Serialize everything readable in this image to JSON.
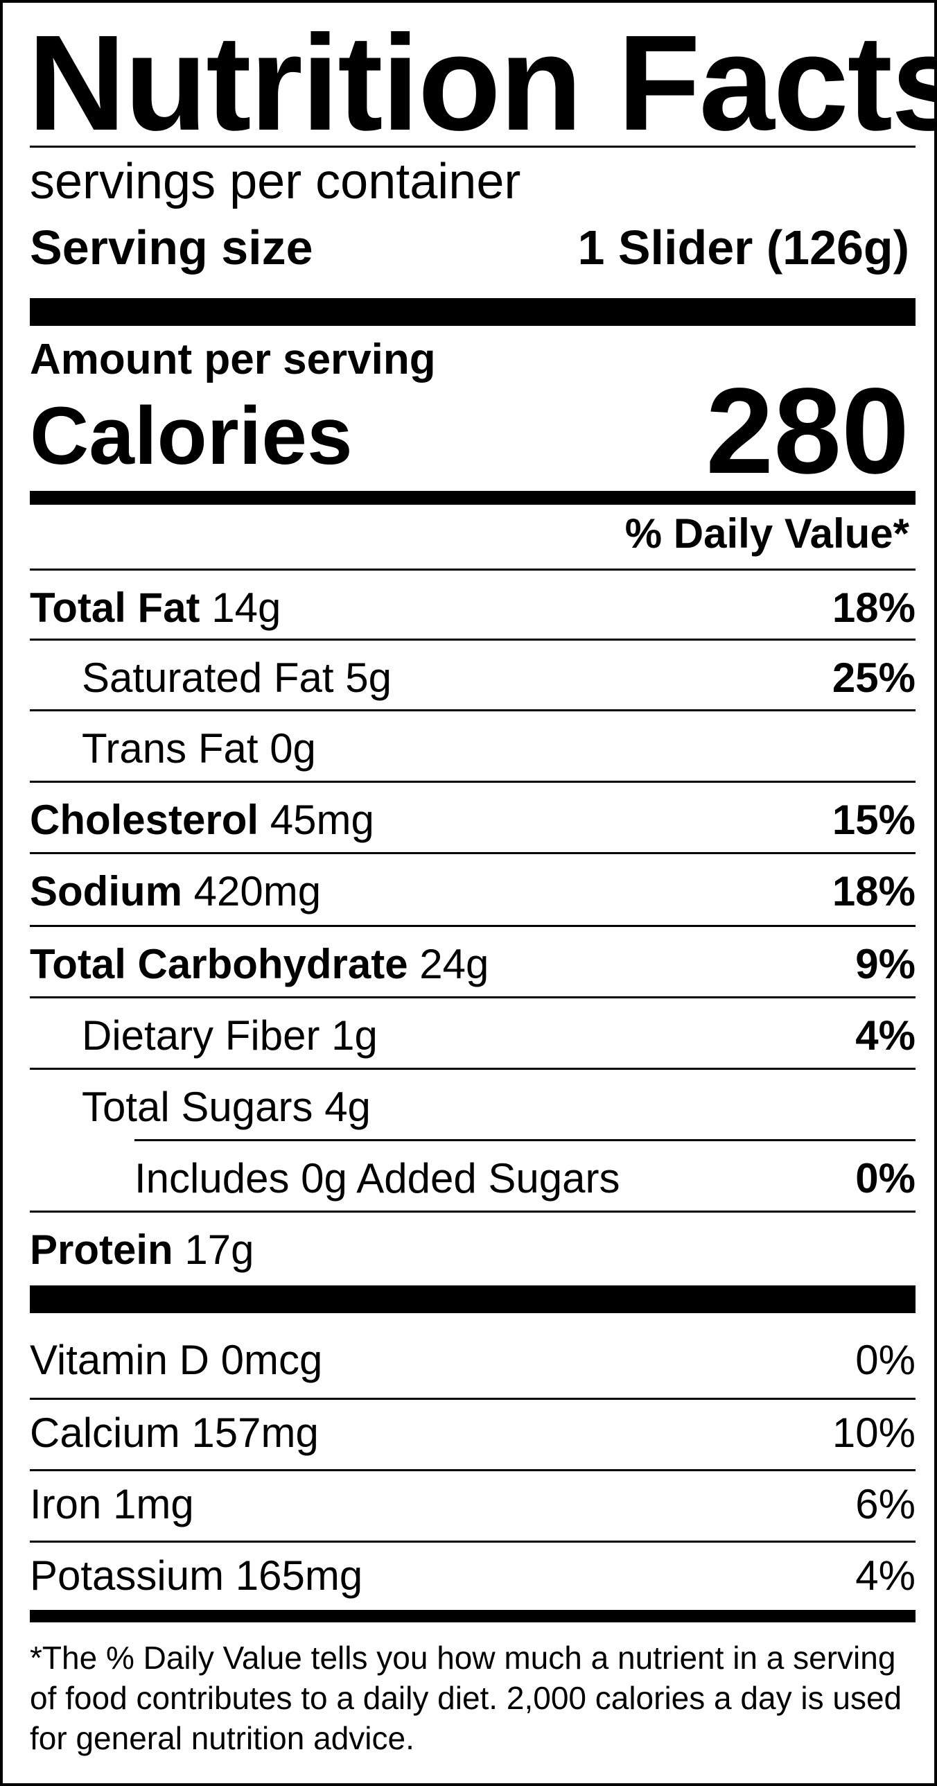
{
  "label": {
    "title": "Nutrition Facts",
    "servings_per_container": "servings per container",
    "serving_size_label": "Serving size",
    "serving_size_value": "1 Slider  (126g)",
    "amount_per_serving": "Amount per serving",
    "calories_label": "Calories",
    "calories_value": "280",
    "daily_value_header": "% Daily Value*"
  },
  "nutrients": [
    {
      "name": "Total Fat",
      "amount": "14g",
      "dv": "18%"
    },
    {
      "name": "Saturated Fat",
      "amount": "5g",
      "dv": "25%"
    },
    {
      "name": "Trans Fat",
      "amount": "0g",
      "dv": ""
    },
    {
      "name": "Cholesterol",
      "amount": "45mg",
      "dv": "15%"
    },
    {
      "name": "Sodium",
      "amount": "420mg",
      "dv": "18%"
    },
    {
      "name": "Total Carbohydrate",
      "amount": "24g",
      "dv": "9%"
    },
    {
      "name": "Dietary Fiber",
      "amount": "1g",
      "dv": "4%"
    },
    {
      "name": "Total Sugars",
      "amount": "4g",
      "dv": ""
    },
    {
      "name": "Includes 0g Added Sugars",
      "amount": "",
      "dv": "0%"
    },
    {
      "name": "Protein",
      "amount": "17g",
      "dv": ""
    }
  ],
  "vitamins": [
    {
      "name": "Vitamin D",
      "amount": "0mcg",
      "dv": "0%"
    },
    {
      "name": "Calcium",
      "amount": "157mg",
      "dv": "10%"
    },
    {
      "name": "Iron",
      "amount": "1mg",
      "dv": "6%"
    },
    {
      "name": "Potassium",
      "amount": "165mg",
      "dv": "4%"
    }
  ],
  "footnote": "*The % Daily Value tells you how much a nutrient in a serving of food contributes to a daily diet. 2,000 calories a day is used for general nutrition advice."
}
